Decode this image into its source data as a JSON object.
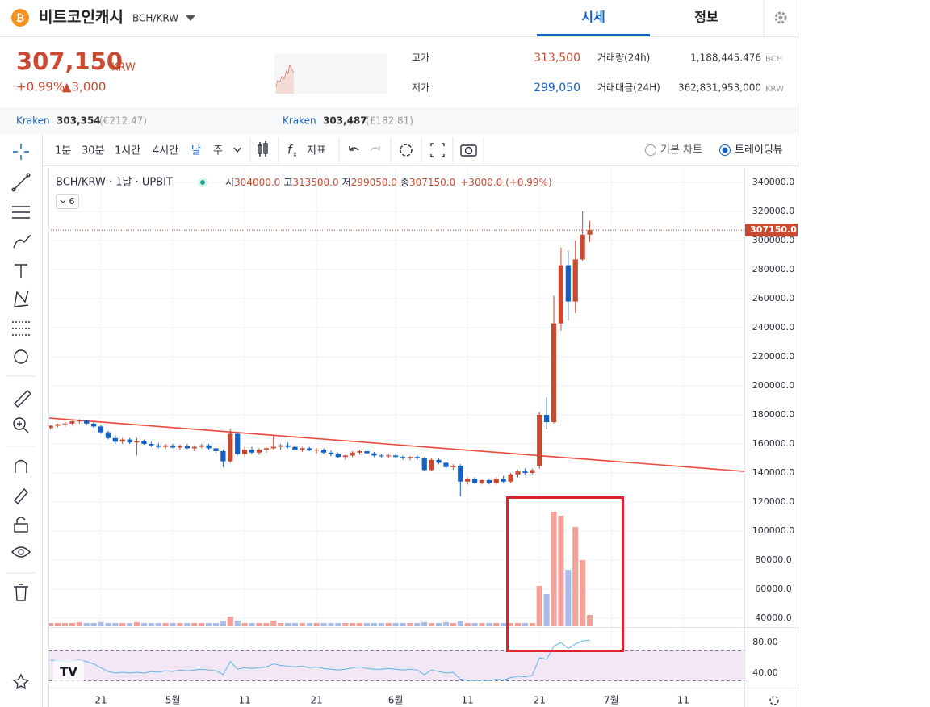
{
  "header": {
    "title": "비트코인캐시",
    "pair": "BCH/KRW",
    "tabs": [
      "시세",
      "정보"
    ]
  },
  "ticker": {
    "price": "307,150",
    "currency": "KRW",
    "change_rate": "+0.99%",
    "change": "▲3,000"
  },
  "stats": [
    {
      "label": "고가",
      "value": "313,500"
    },
    {
      "label": "저가",
      "value": "299,050"
    },
    {
      "label": "거래량(24h)",
      "value": "1,188,445.476",
      "unit": "BCH"
    },
    {
      "label": "거래대금(24H)",
      "value": "362,831,953,000",
      "unit": "KRW"
    }
  ],
  "exchanges": [
    {
      "name": "Kraken",
      "price": "303,354",
      "foreign": "(€212.47)"
    },
    {
      "name": "Kraken",
      "price": "303,487",
      "foreign": "(£182.81)"
    }
  ],
  "toolbar": {
    "intervals": [
      "1분",
      "30분",
      "1시간",
      "4시간",
      "날",
      "주"
    ],
    "indicator": "지표",
    "views": [
      "기본 차트",
      "트레이딩뷰"
    ]
  },
  "chart_data": {
    "type": "candlestick",
    "symbol": "BCH/KRW · 1날 · UPBIT",
    "legend": [
      {
        "label": "시",
        "value": "304000.0"
      },
      {
        "label": "고",
        "value": "313500.0"
      },
      {
        "label": "저",
        "value": "299050.0"
      },
      {
        "label": "종",
        "value": "307150.0"
      }
    ],
    "legend_change": "+3000.0 (+0.99%)",
    "studies_count": 6,
    "candles": [
      [
        171000,
        173000,
        170000,
        172500
      ],
      [
        172500,
        174000,
        171500,
        173500
      ],
      [
        173500,
        175000,
        172000,
        174000
      ],
      [
        174000,
        176500,
        173000,
        175500
      ],
      [
        175500,
        177000,
        174000,
        176000
      ],
      [
        176000,
        176500,
        173000,
        174000
      ],
      [
        174000,
        175000,
        171000,
        172000
      ],
      [
        172000,
        173000,
        167000,
        168000
      ],
      [
        168000,
        169000,
        163000,
        164000
      ],
      [
        164000,
        166000,
        160000,
        161500
      ],
      [
        161500,
        164000,
        160000,
        163000
      ],
      [
        163000,
        164000,
        160000,
        161000
      ],
      [
        161000,
        164000,
        152000,
        162000
      ],
      [
        162000,
        163000,
        159500,
        160000
      ],
      [
        160000,
        161500,
        158000,
        159000
      ],
      [
        159000,
        160500,
        157000,
        158000
      ],
      [
        158000,
        160000,
        156500,
        159000
      ],
      [
        159000,
        160000,
        157000,
        157500
      ],
      [
        157500,
        159500,
        156000,
        158500
      ],
      [
        158500,
        160000,
        156500,
        157000
      ],
      [
        157000,
        159000,
        155000,
        158000
      ],
      [
        158000,
        160000,
        157000,
        159000
      ],
      [
        159000,
        160000,
        156000,
        157000
      ],
      [
        157000,
        158000,
        154000,
        155000
      ],
      [
        155000,
        156000,
        144000,
        148000
      ],
      [
        148000,
        170000,
        147000,
        167000
      ],
      [
        167000,
        168000,
        152000,
        153000
      ],
      [
        153000,
        158000,
        151000,
        156000
      ],
      [
        156000,
        158000,
        153000,
        154000
      ],
      [
        154000,
        157000,
        152500,
        156000
      ],
      [
        156000,
        158000,
        154000,
        157000
      ],
      [
        157000,
        166000,
        156000,
        158000
      ],
      [
        158000,
        160000,
        156000,
        159000
      ],
      [
        159000,
        161000,
        157000,
        158000
      ],
      [
        158000,
        159000,
        155000,
        156000
      ],
      [
        156000,
        158000,
        154500,
        157000
      ],
      [
        157000,
        158000,
        155000,
        155500
      ],
      [
        155500,
        157000,
        153500,
        156000
      ],
      [
        156000,
        157000,
        153000,
        154000
      ],
      [
        154000,
        155500,
        151500,
        153000
      ],
      [
        153000,
        154000,
        150000,
        151000
      ],
      [
        151000,
        152500,
        149000,
        152000
      ],
      [
        152000,
        155000,
        151000,
        154000
      ],
      [
        154000,
        156000,
        152500,
        155000
      ],
      [
        155000,
        157000,
        153000,
        153500
      ],
      [
        153500,
        154500,
        151000,
        152000
      ],
      [
        152000,
        153000,
        150500,
        151500
      ],
      [
        151500,
        153000,
        150000,
        152000
      ],
      [
        152000,
        153000,
        150000,
        151000
      ],
      [
        151000,
        152000,
        149000,
        150000
      ],
      [
        150000,
        151500,
        148500,
        151000
      ],
      [
        151000,
        152000,
        149000,
        150000
      ],
      [
        150000,
        151000,
        141000,
        142000
      ],
      [
        142000,
        150000,
        141000,
        149000
      ],
      [
        149000,
        150000,
        146000,
        147000
      ],
      [
        147000,
        148000,
        143000,
        144000
      ],
      [
        144000,
        146000,
        142000,
        145000
      ],
      [
        145000,
        146000,
        124000,
        134000
      ],
      [
        134000,
        137000,
        132000,
        136000
      ],
      [
        136000,
        137000,
        132500,
        133000
      ],
      [
        133000,
        135500,
        132000,
        135000
      ],
      [
        135000,
        136000,
        132000,
        133000
      ],
      [
        133000,
        137000,
        132000,
        136000
      ],
      [
        136000,
        138000,
        133000,
        134000
      ],
      [
        134000,
        140000,
        133000,
        139000
      ],
      [
        139000,
        142000,
        137000,
        141000
      ],
      [
        141000,
        143000,
        139000,
        140000
      ],
      [
        140000,
        143000,
        139000,
        142000
      ],
      [
        145000,
        182000,
        143000,
        180000
      ],
      [
        180000,
        192000,
        170000,
        175000
      ],
      [
        175000,
        262000,
        174000,
        243000
      ],
      [
        243000,
        295000,
        238000,
        283000
      ],
      [
        283000,
        293000,
        245000,
        258000
      ],
      [
        258000,
        300000,
        250000,
        287000
      ],
      [
        287000,
        320000,
        286000,
        304000
      ],
      [
        304000,
        313500,
        299050,
        307150
      ]
    ],
    "volume": [
      4,
      4,
      4,
      4,
      5,
      4,
      4,
      5,
      4,
      4,
      4,
      4,
      5,
      4,
      4,
      4,
      4,
      4,
      4,
      4,
      4,
      4,
      4,
      4,
      6,
      12,
      7,
      4,
      4,
      4,
      4,
      7,
      4,
      4,
      4,
      4,
      4,
      4,
      4,
      4,
      4,
      4,
      4,
      4,
      4,
      4,
      4,
      4,
      4,
      4,
      4,
      4,
      5,
      4,
      4,
      5,
      4,
      6,
      4,
      4,
      4,
      4,
      4,
      4,
      4,
      4,
      4,
      4,
      50,
      40,
      142,
      137,
      70,
      123,
      82,
      14
    ],
    "rsi": [
      57,
      56,
      55,
      56,
      57,
      55,
      52,
      47,
      42,
      40,
      41,
      40,
      41,
      40,
      42,
      41,
      43,
      42,
      44,
      43,
      44,
      45,
      44,
      43,
      38,
      55,
      45,
      47,
      46,
      47,
      48,
      52,
      50,
      49,
      48,
      49,
      47,
      48,
      46,
      45,
      44,
      45,
      47,
      48,
      46,
      45,
      45,
      46,
      45,
      44,
      45,
      44,
      38,
      44,
      42,
      40,
      41,
      32,
      31,
      30,
      31,
      30,
      32,
      31,
      34,
      36,
      35,
      37,
      60,
      58,
      75,
      80,
      72,
      78,
      82,
      83
    ],
    "rsi_bands": [
      70,
      30
    ],
    "trendline": [
      177800,
      141100
    ],
    "last_price": {
      "value": 307150,
      "label": "307150.0"
    },
    "xlim": [
      -0.3,
      96.5
    ],
    "xticks": [
      {
        "value": 7,
        "label": "21"
      },
      {
        "value": 17,
        "label": "5월"
      },
      {
        "value": 27,
        "label": "11"
      },
      {
        "value": 37,
        "label": "21"
      },
      {
        "value": 48,
        "label": "6월"
      },
      {
        "value": 58,
        "label": "11"
      },
      {
        "value": 68,
        "label": "21"
      },
      {
        "value": 78,
        "label": "7월"
      },
      {
        "value": 88,
        "label": "11"
      }
    ],
    "ylim": [
      35000,
      350000
    ],
    "yticks": [
      {
        "value": 340000,
        "label": "340000.0"
      },
      {
        "value": 320000,
        "label": "320000.0"
      },
      {
        "value": 300000,
        "label": "300000.0"
      },
      {
        "value": 280000,
        "label": "280000.0"
      },
      {
        "value": 260000,
        "label": "260000.0"
      },
      {
        "value": 240000,
        "label": "240000.0"
      },
      {
        "value": 220000,
        "label": "220000.0"
      },
      {
        "value": 200000,
        "label": "200000.0"
      },
      {
        "value": 180000,
        "label": "180000.0"
      },
      {
        "value": 160000,
        "label": "160000.0"
      },
      {
        "value": 140000,
        "label": "140000.0"
      },
      {
        "value": 120000,
        "label": "120000.0"
      },
      {
        "value": 100000,
        "label": "100000.0"
      },
      {
        "value": 80000,
        "label": "80000.0"
      },
      {
        "value": 60000,
        "label": "60000.0"
      },
      {
        "value": 40000,
        "label": "40000.0"
      }
    ],
    "rsi_ylim": [
      21,
      99
    ],
    "rsi_ticks": [
      {
        "value": 80,
        "label": "80.00"
      },
      {
        "value": 40,
        "label": "40.00"
      }
    ],
    "colors": {
      "up": "#c84a31",
      "down": "#1261c4",
      "volume_up": "#f4a199",
      "volume_down": "#a8bde9",
      "trendline": "#f0483e",
      "rsi": "#5fb6e2",
      "rsi_band": "#f3e6f5"
    },
    "grid": true
  }
}
